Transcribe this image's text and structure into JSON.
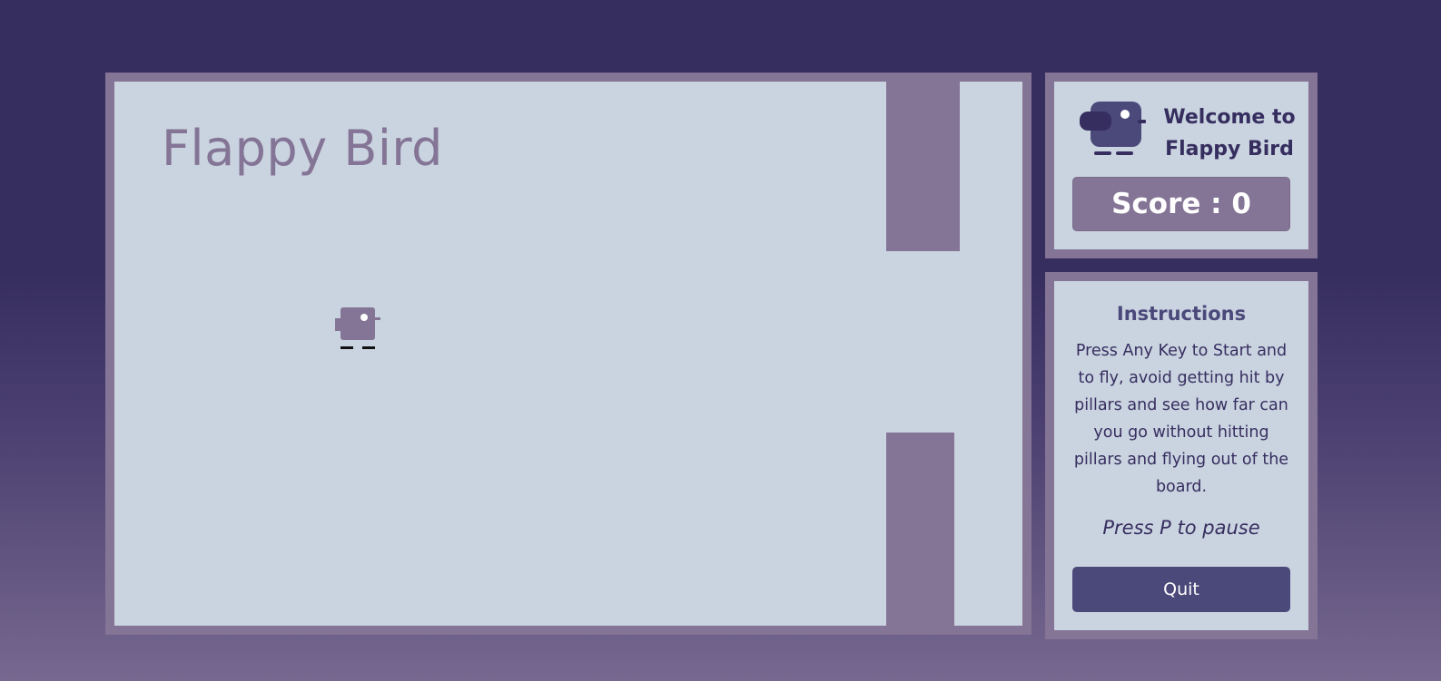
{
  "game": {
    "title": "Flappy Bird",
    "bird_icon": "bird-icon",
    "pillar_icon": "pillar",
    "colors": {
      "page_background": "#372e60",
      "frame": "#847495",
      "board": "#cad4e0",
      "pillar": "#847495",
      "game_bird": "#847495"
    }
  },
  "welcome": {
    "logo_icon": "bird-logo-icon",
    "line1": "Welcome to",
    "line2": "Flappy Bird",
    "score_label": "Score : 0",
    "colors": {
      "logo_body": "#4b487a",
      "logo_wing": "#372e60",
      "score_background": "#847495"
    }
  },
  "instructions": {
    "title": "Instructions",
    "text": "Press Any Key to Start and to fly, avoid getting hit by pillars and see how far can you go without hitting pillars and flying out of the board.",
    "pause_hint": "Press P to pause",
    "quit_label": "Quit",
    "colors": {
      "quit_background": "#4b487a"
    }
  }
}
